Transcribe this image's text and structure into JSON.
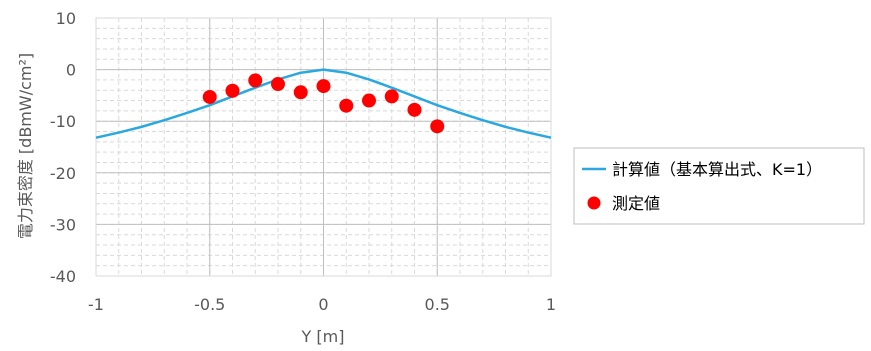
{
  "chart_data": {
    "type": "scatter",
    "xlabel": "Y [m]",
    "ylabel": "電力束密度 [dBmW/cm²]",
    "xlim": [
      -1,
      1
    ],
    "ylim": [
      -40,
      10
    ],
    "x_ticks": [
      -1,
      -0.5,
      0,
      0.5,
      1
    ],
    "y_ticks": [
      10,
      0,
      -10,
      -20,
      -30,
      -40
    ],
    "x_tick_labels": [
      "-1",
      "-0.5",
      "0",
      "0.5",
      "1"
    ],
    "y_tick_labels": [
      "10",
      "0",
      "-10",
      "-20",
      "-30",
      "-40"
    ],
    "grid": true,
    "legend_position": "right",
    "series": [
      {
        "name": "計算値（基本算出式、K=1）",
        "kind": "line",
        "color": "#2AA8DF",
        "x": [
          -1,
          -0.9,
          -0.8,
          -0.7,
          -0.6,
          -0.5,
          -0.4,
          -0.3,
          -0.2,
          -0.1,
          0,
          0.1,
          0.2,
          0.3,
          0.4,
          0.5,
          0.6,
          0.7,
          0.8,
          0.9,
          1
        ],
        "y": [
          -13.2,
          -12.2,
          -11.1,
          -9.8,
          -8.4,
          -6.9,
          -5.2,
          -3.5,
          -1.9,
          -0.6,
          0,
          -0.6,
          -1.9,
          -3.5,
          -5.2,
          -6.9,
          -8.4,
          -9.8,
          -11.1,
          -12.2,
          -13.2
        ]
      },
      {
        "name": "測定値",
        "kind": "scatter",
        "color": "#FF0000",
        "x": [
          -0.5,
          -0.4,
          -0.3,
          -0.2,
          -0.1,
          0,
          0.1,
          0.2,
          0.3,
          0.4,
          0.5
        ],
        "y": [
          -5.3,
          -4.1,
          -2.1,
          -2.8,
          -4.4,
          -3.2,
          -7.0,
          -6.0,
          -5.2,
          -7.8,
          -11.0
        ]
      }
    ]
  }
}
